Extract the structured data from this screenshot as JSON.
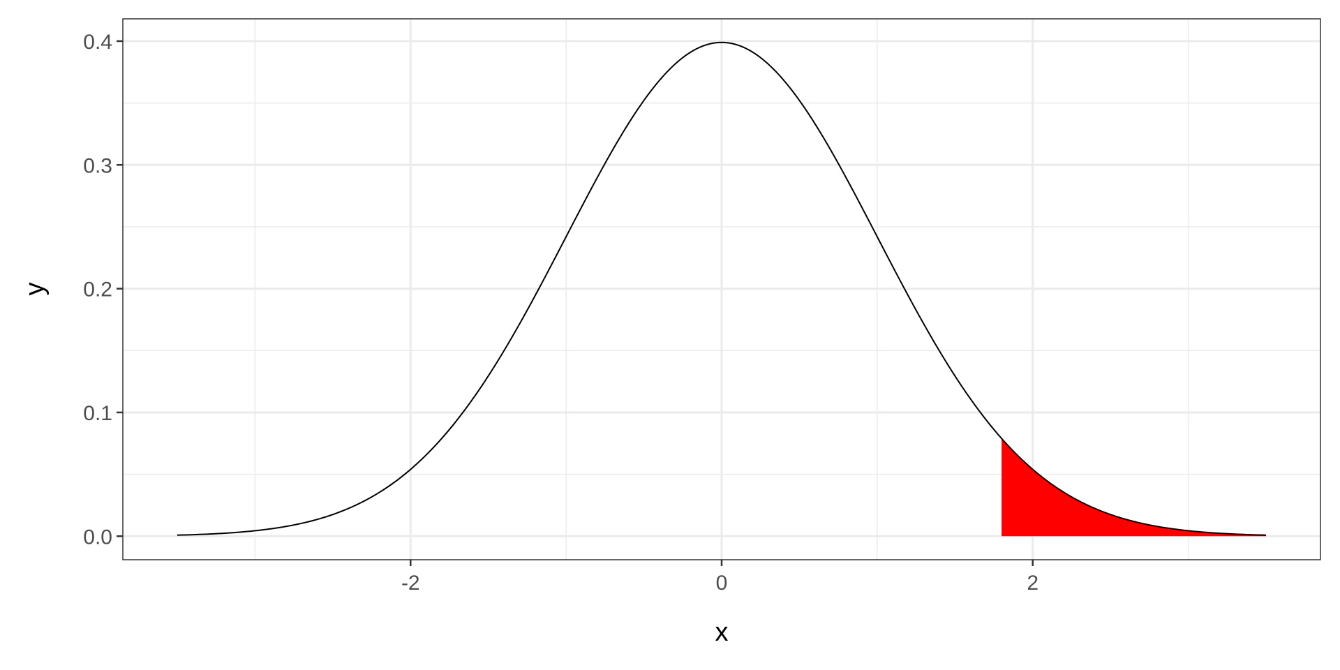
{
  "chart_data": {
    "type": "area",
    "function": "normal density",
    "mean": 0,
    "sd": 1,
    "x_range": [
      -3.5,
      3.5
    ],
    "shaded_region": {
      "from": 1.8,
      "to": 3.5,
      "color": "#ff0000"
    },
    "line_color": "#000000",
    "xlabel": "x",
    "ylabel": "y",
    "xlim": [
      -3.85,
      3.85
    ],
    "ylim": [
      -0.019,
      0.418
    ],
    "x_ticks": [
      "-2",
      "0",
      "2"
    ],
    "x_tick_values": [
      -2,
      0,
      2
    ],
    "x_minor": [
      -3,
      -1,
      1,
      3
    ],
    "y_ticks": [
      "0.0",
      "0.1",
      "0.2",
      "0.3",
      "0.4"
    ],
    "y_tick_values": [
      0,
      0.1,
      0.2,
      0.3,
      0.4
    ],
    "y_minor": [
      0.05,
      0.15,
      0.25,
      0.35
    ],
    "grid": true,
    "theme": "bw"
  }
}
